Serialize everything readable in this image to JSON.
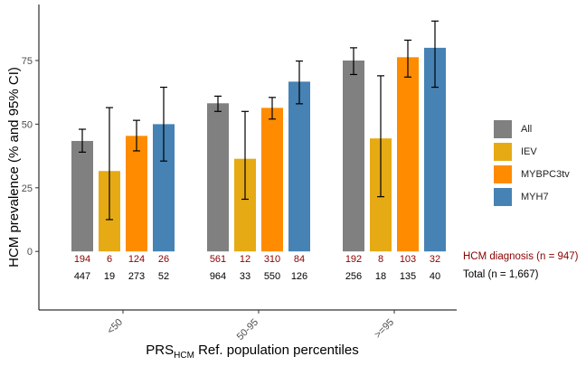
{
  "chart_data": {
    "type": "bar",
    "categories": [
      "<50",
      "50-95",
      ">=95"
    ],
    "series": [
      {
        "name": "All",
        "values": [
          43.4,
          58.2,
          75.0
        ],
        "ci_low": [
          39.0,
          55.0,
          69.5
        ],
        "ci_high": [
          48.0,
          61.0,
          80.0
        ],
        "hcm_n": [
          "194",
          "561",
          "192"
        ],
        "total_n": [
          "447",
          "964",
          "256"
        ]
      },
      {
        "name": "IEV",
        "values": [
          31.6,
          36.4,
          44.4
        ],
        "ci_low": [
          12.5,
          20.5,
          21.5
        ],
        "ci_high": [
          56.5,
          55.0,
          69.0
        ],
        "hcm_n": [
          "6",
          "12",
          "8"
        ],
        "total_n": [
          "19",
          "33",
          "18"
        ]
      },
      {
        "name": "MYBPC3tv",
        "values": [
          45.4,
          56.4,
          76.3
        ],
        "ci_low": [
          39.5,
          52.0,
          68.5
        ],
        "ci_high": [
          51.5,
          60.5,
          83.0
        ],
        "hcm_n": [
          "124",
          "310",
          "103"
        ],
        "total_n": [
          "273",
          "550",
          "135"
        ]
      },
      {
        "name": "MYH7",
        "values": [
          50.0,
          66.7,
          80.0
        ],
        "ci_low": [
          35.5,
          58.0,
          64.5
        ],
        "ci_high": [
          64.5,
          74.8,
          90.5
        ],
        "hcm_n": [
          "26",
          "84",
          "32"
        ],
        "total_n": [
          "52",
          "126",
          "40"
        ]
      }
    ],
    "colors": {
      "All": "#808080",
      "IEV": "#E6AA14",
      "MYBPC3tv": "#FF8C00",
      "MYH7": "#4682B4",
      "hcm_text": "#8B0000",
      "total_text": "#000000"
    },
    "ylabel": "HCM prevalence (% and 95% CI)",
    "xlabel_main": "PRS",
    "xlabel_sub": "HCM",
    "xlabel_rest": " Ref. population percentiles",
    "y_ticks": [
      "0",
      "25",
      "50",
      "75"
    ],
    "ylim": [
      -23,
      97
    ],
    "grid": false,
    "legend_position": "right",
    "side_labels": {
      "hcm": "HCM diagnosis (n = 947)",
      "total": "Total  (n = 1,667)"
    }
  }
}
